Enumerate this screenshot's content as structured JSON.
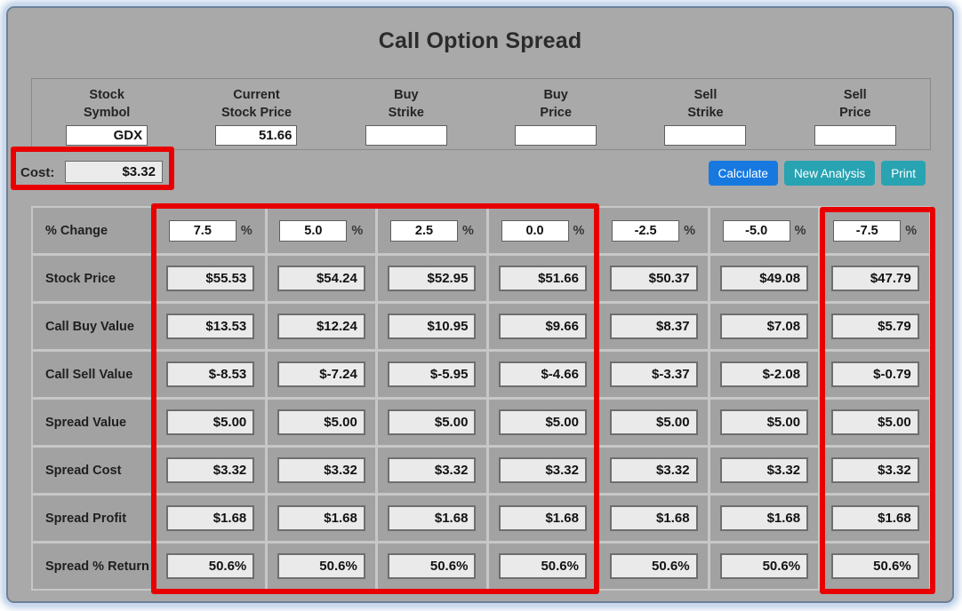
{
  "title": "Call Option Spread",
  "inputs": [
    {
      "label1": "Stock",
      "label2": "Symbol",
      "value": "GDX"
    },
    {
      "label1": "Current",
      "label2": "Stock Price",
      "value": "51.66"
    },
    {
      "label1": "Buy",
      "label2": "Strike",
      "value": ""
    },
    {
      "label1": "Buy",
      "label2": "Price",
      "value": ""
    },
    {
      "label1": "Sell",
      "label2": "Strike",
      "value": ""
    },
    {
      "label1": "Sell",
      "label2": "Price",
      "value": ""
    }
  ],
  "cost": {
    "label": "Cost:",
    "value": "$3.32"
  },
  "buttons": {
    "calculate": "Calculate",
    "new_analysis": "New Analysis",
    "print": "Print"
  },
  "table": {
    "percent_suffix": "%",
    "rows": [
      {
        "label": "% Change",
        "type": "percent",
        "values": [
          "7.5",
          "5.0",
          "2.5",
          "0.0",
          "-2.5",
          "-5.0",
          "-7.5"
        ]
      },
      {
        "label": "Stock Price",
        "type": "readonly",
        "values": [
          "$55.53",
          "$54.24",
          "$52.95",
          "$51.66",
          "$50.37",
          "$49.08",
          "$47.79"
        ]
      },
      {
        "label": "Call Buy Value",
        "type": "readonly",
        "values": [
          "$13.53",
          "$12.24",
          "$10.95",
          "$9.66",
          "$8.37",
          "$7.08",
          "$5.79"
        ]
      },
      {
        "label": "Call Sell Value",
        "type": "readonly",
        "values": [
          "$-8.53",
          "$-7.24",
          "$-5.95",
          "$-4.66",
          "$-3.37",
          "$-2.08",
          "$-0.79"
        ]
      },
      {
        "label": "Spread Value",
        "type": "readonly",
        "values": [
          "$5.00",
          "$5.00",
          "$5.00",
          "$5.00",
          "$5.00",
          "$5.00",
          "$5.00"
        ]
      },
      {
        "label": "Spread Cost",
        "type": "readonly",
        "values": [
          "$3.32",
          "$3.32",
          "$3.32",
          "$3.32",
          "$3.32",
          "$3.32",
          "$3.32"
        ]
      },
      {
        "label": "Spread Profit",
        "type": "readonly",
        "values": [
          "$1.68",
          "$1.68",
          "$1.68",
          "$1.68",
          "$1.68",
          "$1.68",
          "$1.68"
        ]
      },
      {
        "label": "Spread % Return",
        "type": "readonly",
        "values": [
          "50.6%",
          "50.6%",
          "50.6%",
          "50.6%",
          "50.6%",
          "50.6%",
          "50.6%"
        ]
      }
    ]
  },
  "colors": {
    "accent_blue": "#1779e0",
    "accent_teal": "#28a3b2",
    "annotation_red": "#e80000",
    "background_gray": "#a9a9a9",
    "field_gray": "#eaeaea"
  }
}
